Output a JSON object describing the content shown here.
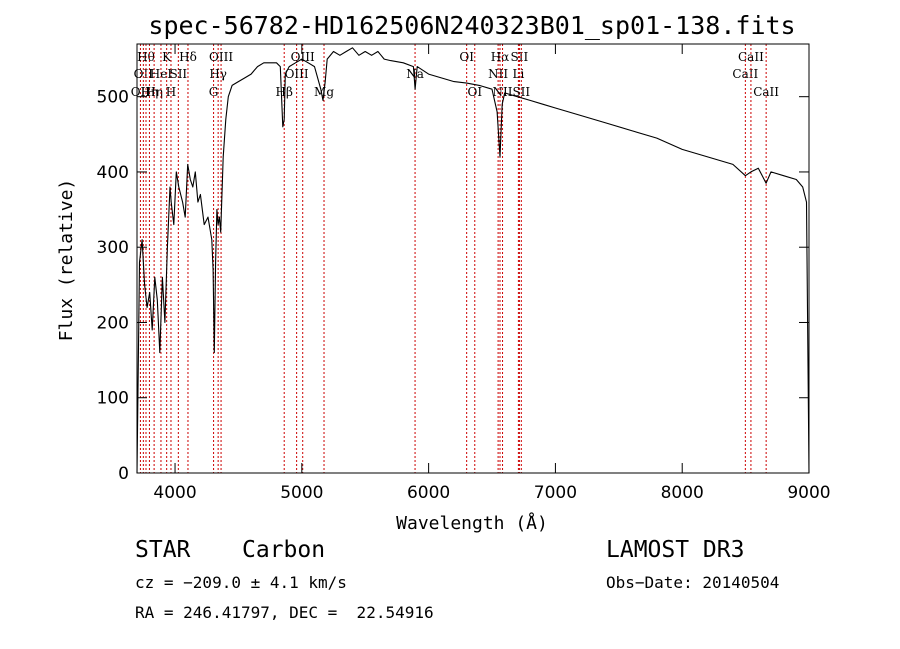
{
  "chart_data": {
    "type": "line",
    "title": "spec-56782-HD162506N240323B01_sp01-138.fits",
    "xlabel": "Wavelength (Å)",
    "ylabel": "Flux (relative)",
    "xlim": [
      3700,
      9000
    ],
    "ylim": [
      0,
      570
    ],
    "x_ticks": [
      4000,
      5000,
      6000,
      7000,
      8000,
      9000
    ],
    "y_ticks": [
      0,
      100,
      200,
      300,
      400,
      500
    ],
    "grid": false,
    "series": [
      {
        "name": "spectrum",
        "x": [
          3700,
          3720,
          3740,
          3760,
          3780,
          3800,
          3820,
          3840,
          3860,
          3880,
          3900,
          3920,
          3940,
          3960,
          3970,
          3990,
          4010,
          4030,
          4060,
          4080,
          4100,
          4120,
          4140,
          4160,
          4180,
          4200,
          4230,
          4260,
          4290,
          4300,
          4310,
          4320,
          4330,
          4340,
          4350,
          4360,
          4380,
          4400,
          4420,
          4450,
          4500,
          4550,
          4600,
          4650,
          4700,
          4750,
          4800,
          4830,
          4850,
          4861,
          4870,
          4900,
          4950,
          5000,
          5050,
          5100,
          5150,
          5167,
          5184,
          5200,
          5250,
          5300,
          5350,
          5400,
          5450,
          5500,
          5550,
          5600,
          5650,
          5700,
          5800,
          5880,
          5893,
          5910,
          6000,
          6100,
          6200,
          6300,
          6400,
          6500,
          6540,
          6563,
          6580,
          6600,
          6700,
          6800,
          6900,
          7000,
          7200,
          7400,
          7600,
          7800,
          8000,
          8200,
          8400,
          8498,
          8542,
          8600,
          8662,
          8700,
          8800,
          8900,
          8950,
          8980,
          9000
        ],
        "values": [
          0,
          280,
          310,
          250,
          220,
          240,
          190,
          260,
          230,
          160,
          260,
          200,
          300,
          380,
          360,
          330,
          400,
          380,
          360,
          340,
          410,
          390,
          380,
          400,
          360,
          370,
          330,
          340,
          310,
          270,
          160,
          280,
          350,
          330,
          340,
          320,
          420,
          470,
          500,
          515,
          520,
          525,
          530,
          540,
          545,
          545,
          545,
          540,
          460,
          470,
          530,
          540,
          545,
          550,
          545,
          540,
          510,
          495,
          520,
          550,
          560,
          555,
          560,
          565,
          555,
          560,
          555,
          560,
          550,
          548,
          545,
          540,
          510,
          540,
          530,
          525,
          520,
          518,
          515,
          510,
          480,
          420,
          490,
          505,
          500,
          495,
          490,
          485,
          475,
          465,
          455,
          445,
          430,
          420,
          410,
          395,
          400,
          405,
          385,
          400,
          395,
          390,
          380,
          360,
          0
        ]
      }
    ],
    "line_markers": [
      {
        "wavelength": 3727,
        "labels": [
          "OII"
        ],
        "tier": 3
      },
      {
        "wavelength": 3750,
        "labels": [
          "OII"
        ],
        "tier": 2
      },
      {
        "wavelength": 3771,
        "labels": [
          "Hθ"
        ],
        "tier": 1
      },
      {
        "wavelength": 3798,
        "labels": [
          "Hη"
        ],
        "tier": 3
      },
      {
        "wavelength": 3835,
        "labels": [
          "Hη"
        ],
        "tier": 3
      },
      {
        "wavelength": 3889,
        "labels": [
          "HeI"
        ],
        "tier": 2
      },
      {
        "wavelength": 3934,
        "labels": [
          "K"
        ],
        "tier": 1
      },
      {
        "wavelength": 3968,
        "labels": [
          "H"
        ],
        "tier": 3
      },
      {
        "wavelength": 4026,
        "labels": [
          "SII"
        ],
        "tier": 2
      },
      {
        "wavelength": 4102,
        "labels": [
          "Hδ"
        ],
        "tier": 1
      },
      {
        "wavelength": 4304,
        "labels": [
          "G"
        ],
        "tier": 3
      },
      {
        "wavelength": 4340,
        "labels": [
          "Hγ"
        ],
        "tier": 2
      },
      {
        "wavelength": 4363,
        "labels": [
          "OIII"
        ],
        "tier": 1
      },
      {
        "wavelength": 4861,
        "labels": [
          "Hβ"
        ],
        "tier": 3
      },
      {
        "wavelength": 4959,
        "labels": [
          "OIII"
        ],
        "tier": 2
      },
      {
        "wavelength": 5007,
        "labels": [
          "OIII"
        ],
        "tier": 1
      },
      {
        "wavelength": 5175,
        "labels": [
          "Mg"
        ],
        "tier": 3
      },
      {
        "wavelength": 5893,
        "labels": [
          "Na"
        ],
        "tier": 2
      },
      {
        "wavelength": 6300,
        "labels": [
          "OI"
        ],
        "tier": 1
      },
      {
        "wavelength": 6364,
        "labels": [
          "OI"
        ],
        "tier": 3
      },
      {
        "wavelength": 6548,
        "labels": [
          "NII"
        ],
        "tier": 2
      },
      {
        "wavelength": 6563,
        "labels": [
          "Hα"
        ],
        "tier": 1
      },
      {
        "wavelength": 6583,
        "labels": [
          "NII"
        ],
        "tier": 3
      },
      {
        "wavelength": 6708,
        "labels": [
          "Li"
        ],
        "tier": 2
      },
      {
        "wavelength": 6716,
        "labels": [
          "SII"
        ],
        "tier": 1
      },
      {
        "wavelength": 6731,
        "labels": [
          "SII"
        ],
        "tier": 3
      },
      {
        "wavelength": 8498,
        "labels": [
          "CaII"
        ],
        "tier": 2
      },
      {
        "wavelength": 8542,
        "labels": [
          "CaII"
        ],
        "tier": 1
      },
      {
        "wavelength": 8662,
        "labels": [
          "CaII"
        ],
        "tier": 3
      }
    ],
    "marker_color": "#cc0000",
    "line_color": "#000000"
  },
  "info": {
    "class_label": "STAR",
    "subclass_label": "Carbon",
    "survey": "LAMOST DR3",
    "cz": "cz = −209.0 ± 4.1 km/s",
    "obs_date": "Obs−Date: 20140504",
    "coords": "RA = 246.41797, DEC =  22.54916"
  }
}
